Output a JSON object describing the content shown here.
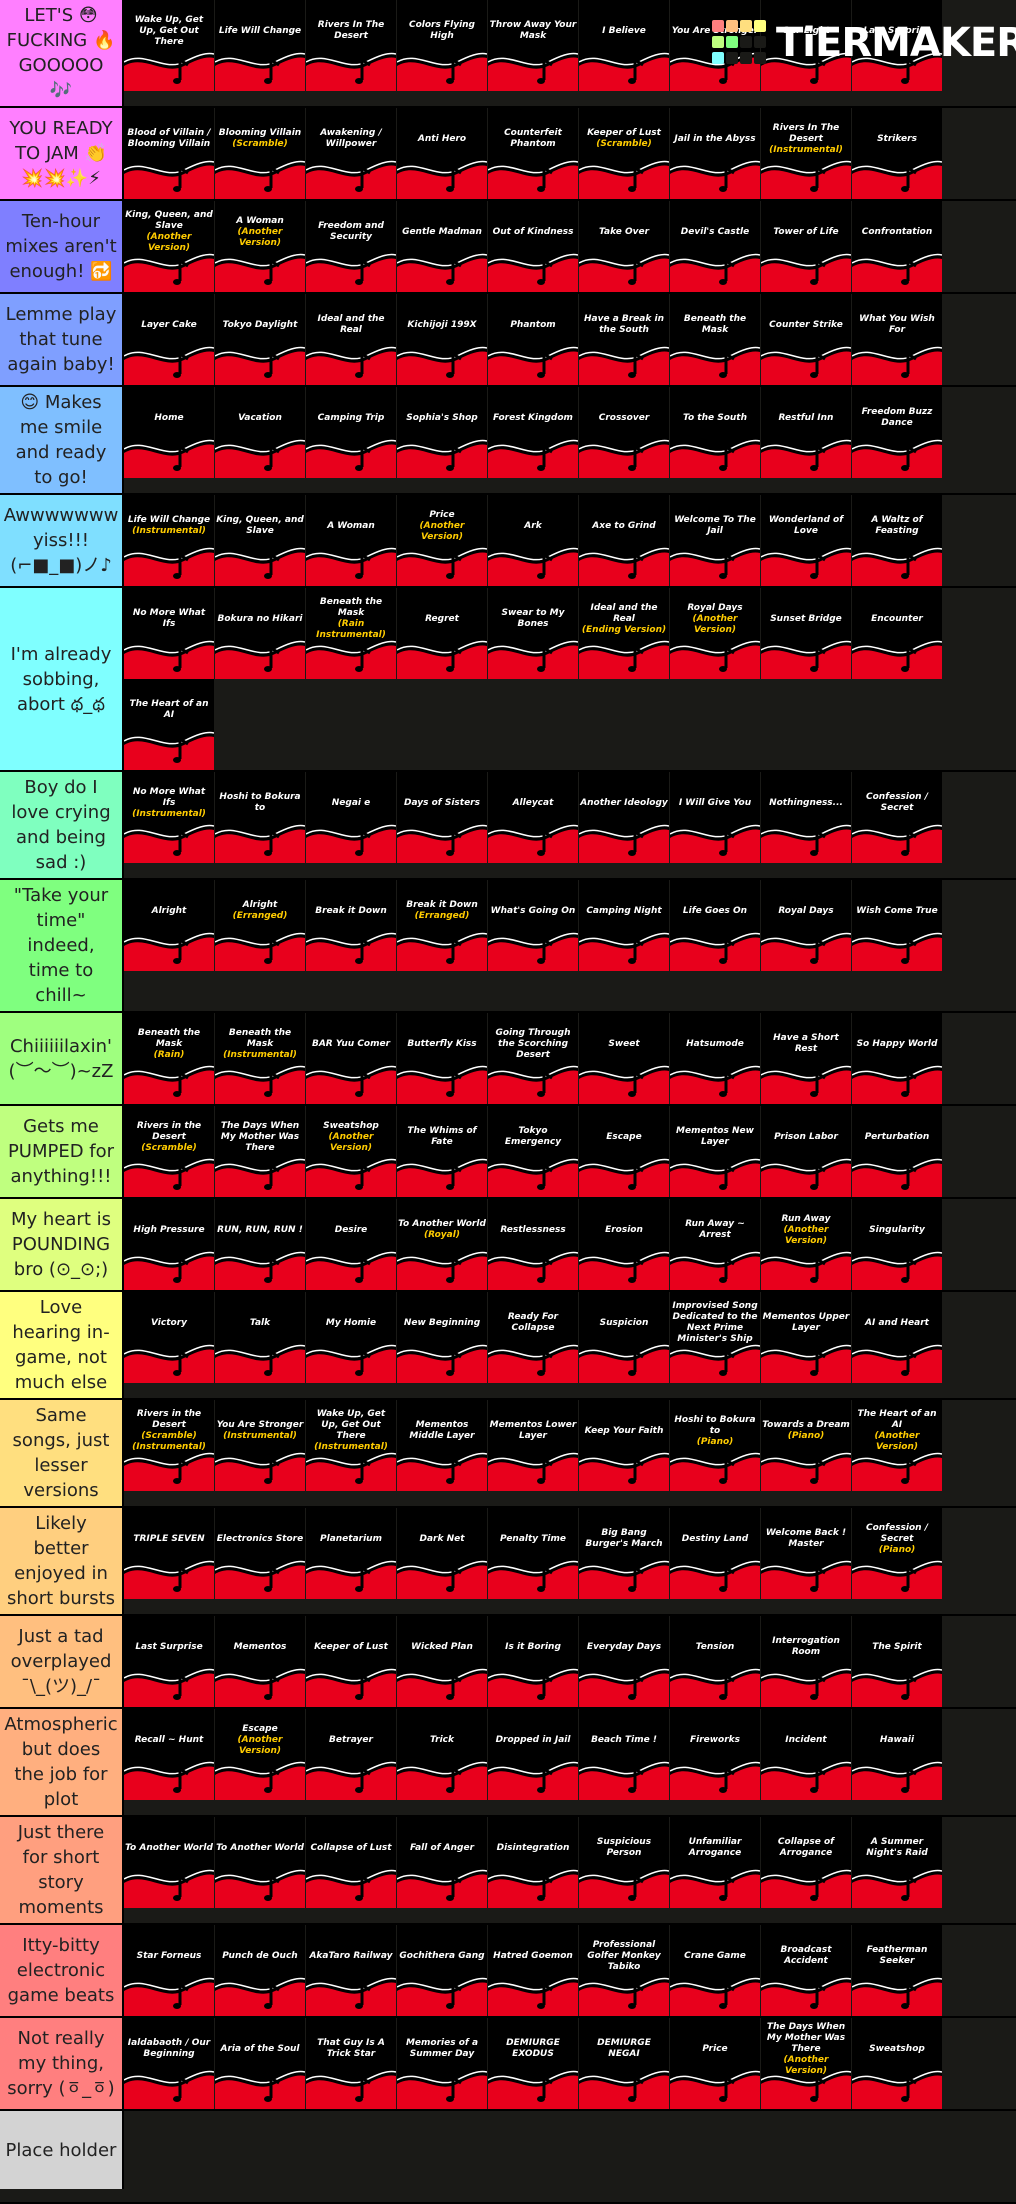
{
  "logo": "TiERMAKER",
  "tiers": [
    {
      "label": "LET'S 😳 FUCKING 🔥 GOOOOO 🎶",
      "color": "#ff7fff",
      "items": [
        {
          "title": "Wake Up, Get Up, Get Out There"
        },
        {
          "title": "Life Will Change"
        },
        {
          "title": "Rivers In The Desert"
        },
        {
          "title": "Colors Flying High"
        },
        {
          "title": "Throw Away Your Mask"
        },
        {
          "title": "I Believe"
        },
        {
          "title": "You Are Stronger"
        },
        {
          "title": "Our Light"
        },
        {
          "title": "Last Surprise"
        }
      ]
    },
    {
      "label": "YOU READY TO JAM 👏 💥💥✨⚡",
      "color": "#ff7fff",
      "items": [
        {
          "title": "Blood of Villain / Blooming Villain"
        },
        {
          "title": "Blooming Villain",
          "sub": "(Scramble)"
        },
        {
          "title": "Awakening / Willpower"
        },
        {
          "title": "Anti Hero"
        },
        {
          "title": "Counterfeit Phantom"
        },
        {
          "title": "Keeper of Lust",
          "sub": "(Scramble)"
        },
        {
          "title": "Jail in the Abyss"
        },
        {
          "title": "Rivers In The Desert",
          "sub": "(Instrumental)"
        },
        {
          "title": "Strikers"
        }
      ]
    },
    {
      "label": "Ten-hour mixes aren't enough! 🔂",
      "color": "#7f7fff",
      "items": [
        {
          "title": "King, Queen, and Slave",
          "sub": "(Another Version)"
        },
        {
          "title": "A Woman",
          "sub": "(Another Version)"
        },
        {
          "title": "Freedom and Security"
        },
        {
          "title": "Gentle Madman"
        },
        {
          "title": "Out of Kindness"
        },
        {
          "title": "Take Over"
        },
        {
          "title": "Devil's Castle"
        },
        {
          "title": "Tower of Life"
        },
        {
          "title": "Confrontation"
        }
      ]
    },
    {
      "label": "Lemme play that tune again baby!",
      "color": "#7f9fff",
      "items": [
        {
          "title": "Layer Cake"
        },
        {
          "title": "Tokyo Daylight"
        },
        {
          "title": "Ideal and the Real"
        },
        {
          "title": "Kichijoji 199X"
        },
        {
          "title": "Phantom"
        },
        {
          "title": "Have a Break in the South"
        },
        {
          "title": "Beneath the Mask"
        },
        {
          "title": "Counter Strike"
        },
        {
          "title": "What You Wish For"
        }
      ]
    },
    {
      "label": "😊 Makes me smile and ready to go!",
      "color": "#7fbfff",
      "items": [
        {
          "title": "Home"
        },
        {
          "title": "Vacation"
        },
        {
          "title": "Camping Trip"
        },
        {
          "title": "Sophia's Shop"
        },
        {
          "title": "Forest Kingdom"
        },
        {
          "title": "Crossover"
        },
        {
          "title": "To the South"
        },
        {
          "title": "Restful Inn"
        },
        {
          "title": "Freedom Buzz Dance"
        }
      ]
    },
    {
      "label": "Awwwwwww yiss!!! (⌐■_■)ノ♪",
      "color": "#7fdfff",
      "items": [
        {
          "title": "Life Will Change",
          "sub": "(Instrumental)"
        },
        {
          "title": "King, Queen, and Slave"
        },
        {
          "title": "A Woman"
        },
        {
          "title": "Price",
          "sub": "(Another Version)"
        },
        {
          "title": "Ark"
        },
        {
          "title": "Axe to Grind"
        },
        {
          "title": "Welcome To The Jail"
        },
        {
          "title": "Wonderland of Love"
        },
        {
          "title": "A Waltz of Feasting"
        }
      ]
    },
    {
      "label": "I'm already sobbing, abort థ_థ",
      "color": "#7fffff",
      "items": [
        {
          "title": "No More What Ifs"
        },
        {
          "title": "Bokura no Hikari"
        },
        {
          "title": "Beneath the Mask",
          "sub": "(Rain Instrumental)"
        },
        {
          "title": "Regret"
        },
        {
          "title": "Swear to My Bones"
        },
        {
          "title": "Ideal and the Real",
          "sub": "(Ending Version)"
        },
        {
          "title": "Royal Days",
          "sub": "(Another Version)"
        },
        {
          "title": "Sunset Bridge"
        },
        {
          "title": "Encounter"
        },
        {
          "title": "The Heart of an AI"
        }
      ]
    },
    {
      "label": "Boy do I love crying and being sad :)",
      "color": "#7fffbf",
      "items": [
        {
          "title": "No More What Ifs",
          "sub": "(Instrumental)"
        },
        {
          "title": "Hoshi to Bokura to"
        },
        {
          "title": "Negai e"
        },
        {
          "title": "Days of Sisters"
        },
        {
          "title": "Alleycat"
        },
        {
          "title": "Another Ideology"
        },
        {
          "title": "I Will Give You"
        },
        {
          "title": "Nothingness..."
        },
        {
          "title": "Confession / Secret"
        }
      ]
    },
    {
      "label": "\"Take your time\" indeed, time to chill~",
      "color": "#7fff7f",
      "items": [
        {
          "title": "Alright"
        },
        {
          "title": "Alright",
          "sub": "(Erranged)"
        },
        {
          "title": "Break it Down"
        },
        {
          "title": "Break it Down",
          "sub": "(Erranged)"
        },
        {
          "title": "What's Going On"
        },
        {
          "title": "Camping Night"
        },
        {
          "title": "Life Goes On"
        },
        {
          "title": "Royal Days"
        },
        {
          "title": "Wish Come True"
        }
      ]
    },
    {
      "label": "Chiiiiiilaxin' (︶～︶)~zZ",
      "color": "#9fff7f",
      "items": [
        {
          "title": "Beneath the Mask",
          "sub": "(Rain)"
        },
        {
          "title": "Beneath the Mask",
          "sub": "(Instrumental)"
        },
        {
          "title": "BAR Yuu Comer"
        },
        {
          "title": "Butterfly Kiss"
        },
        {
          "title": "Going Through the Scorching Desert"
        },
        {
          "title": "Sweet"
        },
        {
          "title": "Hatsumode"
        },
        {
          "title": "Have a Short Rest"
        },
        {
          "title": "So Happy World"
        }
      ]
    },
    {
      "label": "Gets me PUMPED for anything!!!",
      "color": "#bfff7f",
      "items": [
        {
          "title": "Rivers in the Desert",
          "sub": "(Scramble)"
        },
        {
          "title": "The Days When My Mother Was There"
        },
        {
          "title": "Sweatshop",
          "sub": "(Another Version)"
        },
        {
          "title": "The Whims of Fate"
        },
        {
          "title": "Tokyo Emergency"
        },
        {
          "title": "Escape"
        },
        {
          "title": "Mementos New Layer"
        },
        {
          "title": "Prison Labor"
        },
        {
          "title": "Perturbation"
        }
      ]
    },
    {
      "label": "My heart is POUNDING bro (⊙_⊙;)",
      "color": "#dfff7f",
      "items": [
        {
          "title": "High Pressure"
        },
        {
          "title": "RUN, RUN, RUN !"
        },
        {
          "title": "Desire"
        },
        {
          "title": "To Another World",
          "sub": "(Royal)"
        },
        {
          "title": "Restlessness"
        },
        {
          "title": "Erosion"
        },
        {
          "title": "Run Away ~ Arrest"
        },
        {
          "title": "Run Away",
          "sub": "(Another Version)"
        },
        {
          "title": "Singularity"
        }
      ]
    },
    {
      "label": "Love hearing in-game, not much else",
      "color": "#ffff7f",
      "items": [
        {
          "title": "Victory"
        },
        {
          "title": "Talk"
        },
        {
          "title": "My Homie"
        },
        {
          "title": "New Beginning"
        },
        {
          "title": "Ready For Collapse"
        },
        {
          "title": "Suspicion"
        },
        {
          "title": "Improvised Song Dedicated to the Next Prime Minister's Ship"
        },
        {
          "title": "Mementos Upper Layer"
        },
        {
          "title": "AI and Heart"
        }
      ]
    },
    {
      "label": "Same songs, just lesser versions",
      "color": "#ffdf7f",
      "items": [
        {
          "title": "Rivers in the Desert",
          "sub": [
            "(Scramble)",
            "(Instrumental)"
          ]
        },
        {
          "title": "You Are Stronger",
          "sub": "(Instrumental)"
        },
        {
          "title": "Wake Up, Get Up, Get Out There",
          "sub": "(Instrumental)"
        },
        {
          "title": "Mementos Middle Layer"
        },
        {
          "title": "Mementos Lower Layer"
        },
        {
          "title": "Keep Your Faith"
        },
        {
          "title": "Hoshi to Bokura to",
          "sub": "(Piano)"
        },
        {
          "title": "Towards a Dream",
          "sub": "(Piano)"
        },
        {
          "title": "The Heart of an AI",
          "sub": "(Another Version)"
        }
      ]
    },
    {
      "label": "Likely better enjoyed in short bursts",
      "color": "#ffcf7f",
      "items": [
        {
          "title": "TRIPLE SEVEN"
        },
        {
          "title": "Electronics Store"
        },
        {
          "title": "Planetarium"
        },
        {
          "title": "Dark Net"
        },
        {
          "title": "Penalty Time"
        },
        {
          "title": "Big Bang Burger's March"
        },
        {
          "title": "Destiny Land"
        },
        {
          "title": "Welcome Back ! Master"
        },
        {
          "title": "Confession / Secret",
          "sub": "(Piano)"
        }
      ]
    },
    {
      "label": "Just a tad overplayed ¯\\_(ツ)_/¯",
      "color": "#ffbf7f",
      "items": [
        {
          "title": "Last Surprise"
        },
        {
          "title": "Mementos"
        },
        {
          "title": "Keeper of Lust"
        },
        {
          "title": "Wicked Plan"
        },
        {
          "title": "Is it Boring"
        },
        {
          "title": "Everyday Days"
        },
        {
          "title": "Tension"
        },
        {
          "title": "Interrogation Room"
        },
        {
          "title": "The Spirit"
        }
      ]
    },
    {
      "label": "Atmospheric but does the job for plot",
      "color": "#ffaf7f",
      "items": [
        {
          "title": "Recall ~ Hunt"
        },
        {
          "title": "Escape",
          "sub": "(Another Version)"
        },
        {
          "title": "Betrayer"
        },
        {
          "title": "Trick"
        },
        {
          "title": "Dropped in Jail"
        },
        {
          "title": "Beach Time !"
        },
        {
          "title": "Fireworks"
        },
        {
          "title": "Incident"
        },
        {
          "title": "Hawaii"
        }
      ]
    },
    {
      "label": "Just there for short story moments",
      "color": "#ff9f7f",
      "items": [
        {
          "title": "To Another World"
        },
        {
          "title": "To Another World"
        },
        {
          "title": "Collapse of Lust"
        },
        {
          "title": "Fall of Anger"
        },
        {
          "title": "Disintegration"
        },
        {
          "title": "Suspicious Person"
        },
        {
          "title": "Unfamiliar Arrogance"
        },
        {
          "title": "Collapse of Arrogance"
        },
        {
          "title": "A Summer Night's Raid"
        }
      ]
    },
    {
      "label": "Itty-bitty electronic game beats",
      "color": "#ff7f7f",
      "items": [
        {
          "title": "Star Forneus"
        },
        {
          "title": "Punch de Ouch"
        },
        {
          "title": "AkaTaro Railway"
        },
        {
          "title": "Gochithera Gang"
        },
        {
          "title": "Hatred Goemon"
        },
        {
          "title": "Professional Golfer Monkey Tabiko"
        },
        {
          "title": "Crane Game"
        },
        {
          "title": "Broadcast Accident"
        },
        {
          "title": "Featherman Seeker"
        }
      ]
    },
    {
      "label": "Not really my thing, sorry (ㆆ_ㆆ)",
      "color": "#ff7f7f",
      "items": [
        {
          "title": "Ialdabaoth / Our Beginning"
        },
        {
          "title": "Aria of the Soul"
        },
        {
          "title": "That Guy Is A Trick Star"
        },
        {
          "title": "Memories of a Summer Day"
        },
        {
          "title": "DEMIURGE EXODUS"
        },
        {
          "title": "DEMIURGE NEGAI"
        },
        {
          "title": "Price"
        },
        {
          "title": "The Days When My Mother Was There",
          "sub": "(Another Version)"
        },
        {
          "title": "Sweatshop"
        }
      ]
    },
    {
      "label": "Place holder",
      "color": "#d3d3d3",
      "items": []
    }
  ]
}
